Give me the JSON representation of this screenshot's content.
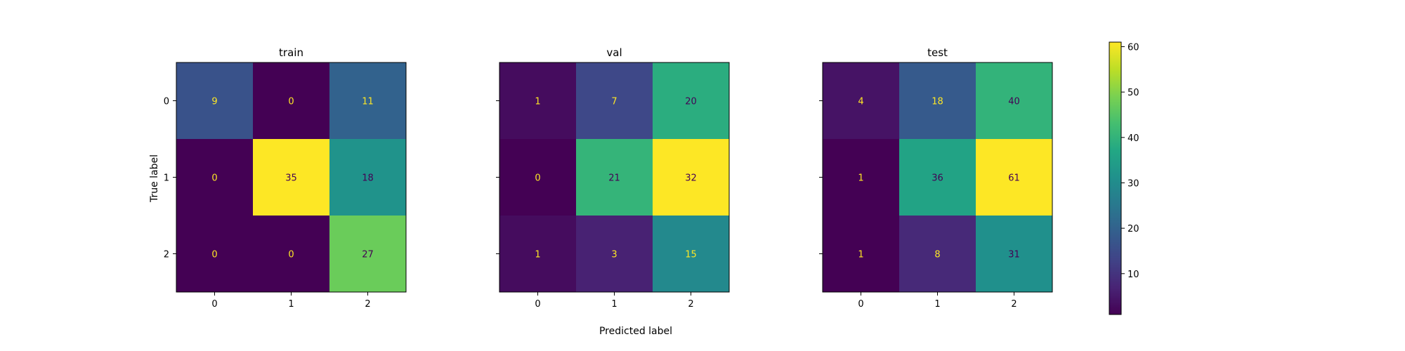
{
  "chart_data": {
    "type": "heatmap",
    "title": "",
    "xlabel": "Predicted label",
    "ylabel": "True label",
    "x_tick_labels": [
      "0",
      "1",
      "2"
    ],
    "y_tick_labels": [
      "0",
      "1",
      "2"
    ],
    "colormap": "viridis",
    "color_range": [
      1,
      61
    ],
    "colorbar_ticks": [
      "10",
      "20",
      "30",
      "40",
      "50",
      "60"
    ],
    "panels": [
      {
        "title": "train",
        "matrix": [
          [
            9,
            0,
            11
          ],
          [
            0,
            35,
            18
          ],
          [
            0,
            0,
            27
          ]
        ]
      },
      {
        "title": "val",
        "matrix": [
          [
            1,
            7,
            20
          ],
          [
            0,
            21,
            32
          ],
          [
            1,
            3,
            15
          ]
        ]
      },
      {
        "title": "test",
        "matrix": [
          [
            4,
            18,
            40
          ],
          [
            1,
            36,
            61
          ],
          [
            1,
            8,
            31
          ]
        ]
      }
    ]
  }
}
